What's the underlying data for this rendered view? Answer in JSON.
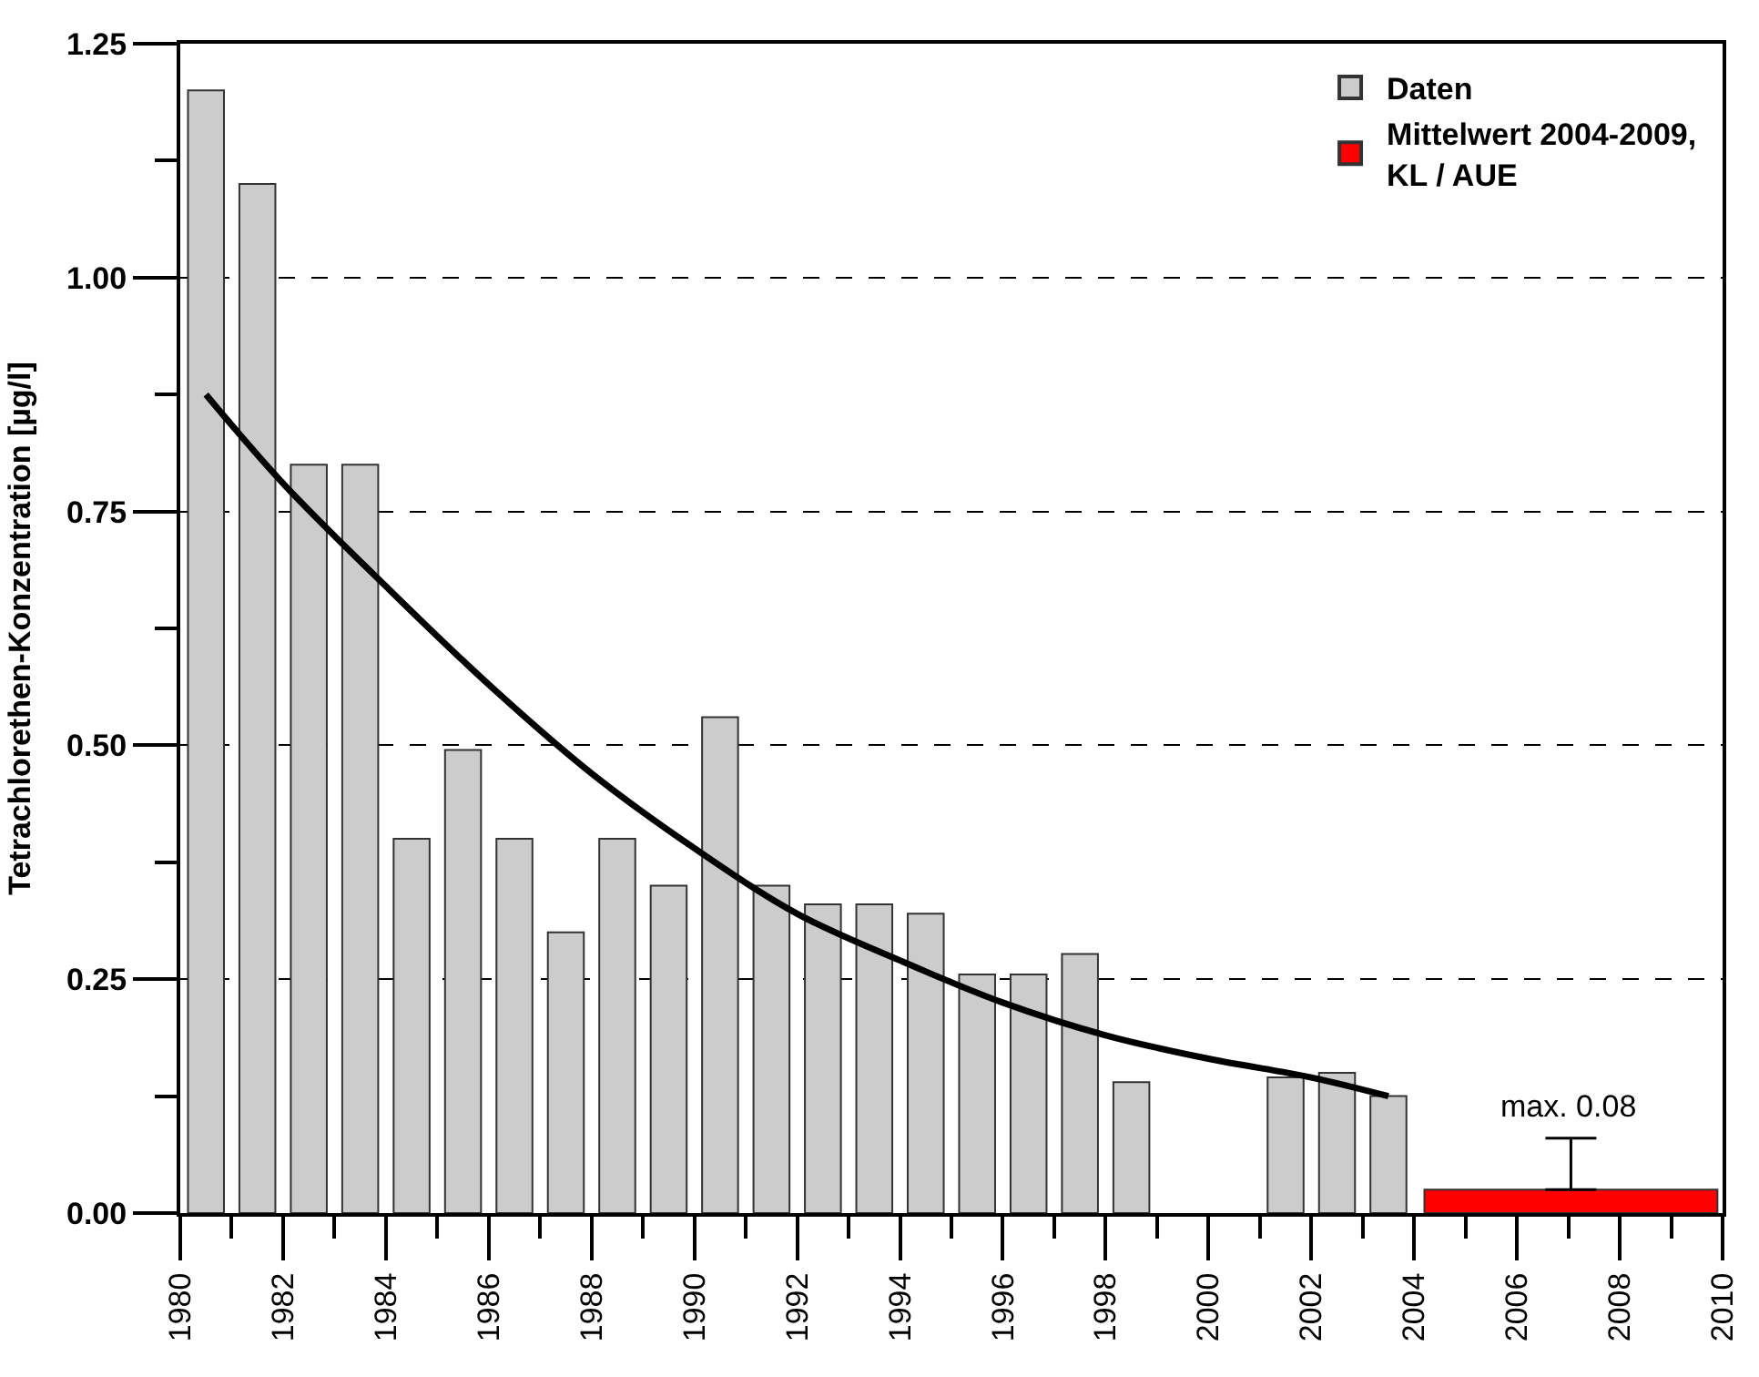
{
  "chart_data": {
    "type": "bar",
    "ylabel": "Tetrachlorethen-Konzentration [µg/l]",
    "series": [
      {
        "name": "Daten",
        "color": "#cccccc",
        "x": [
          1980.5,
          1981.5,
          1982.5,
          1983.5,
          1984.5,
          1985.5,
          1986.5,
          1987.5,
          1988.5,
          1989.5,
          1990.5,
          1991.5,
          1992.5,
          1993.5,
          1994.5,
          1995.5,
          1996.5,
          1997.5,
          1998.5,
          2001.5,
          2002.5,
          2003.5
        ],
        "values": [
          1.2,
          1.1,
          0.8,
          0.8,
          0.4,
          0.495,
          0.4,
          0.3,
          0.4,
          0.35,
          0.53,
          0.35,
          0.33,
          0.33,
          0.32,
          0.255,
          0.255,
          0.277,
          0.14,
          0.145,
          0.15,
          0.125
        ]
      },
      {
        "name": "Mittelwert 2004-2009, KL / AUE",
        "color": "#ff0000",
        "x": [
          2007.05
        ],
        "values": [
          0.025
        ],
        "errors": [
          [
            0.025,
            0.08
          ]
        ]
      },
      {
        "type": "line",
        "color": "#000000",
        "x": [
          1980.5,
          1982,
          1984,
          1986,
          1988,
          1990,
          1992,
          1994,
          1996,
          1998,
          2000,
          2002,
          2003.5
        ],
        "values": [
          0.875,
          0.78,
          0.67,
          0.565,
          0.47,
          0.39,
          0.32,
          0.27,
          0.225,
          0.19,
          0.165,
          0.145,
          0.125
        ]
      }
    ],
    "annotations": [
      {
        "text": "max. 0.08",
        "x": 2007,
        "y": 0.08
      }
    ],
    "xlim": [
      1980,
      2010
    ],
    "xticks": [
      1980,
      {
        "value": 1981,
        "label": null
      },
      1982,
      {
        "value": 1983,
        "label": null
      },
      1984,
      {
        "value": 1985,
        "label": null
      },
      1986,
      {
        "value": 1987,
        "label": null
      },
      1988,
      {
        "value": 1989,
        "label": null
      },
      1990,
      {
        "value": 1991,
        "label": null
      },
      1992,
      {
        "value": 1993,
        "label": null
      },
      1994,
      {
        "value": 1995,
        "label": null
      },
      1996,
      {
        "value": 1997,
        "label": null
      },
      1998,
      {
        "value": 1999,
        "label": null
      },
      2000,
      {
        "value": 2001,
        "label": null
      },
      2002,
      {
        "value": 2003,
        "label": null
      },
      2004,
      {
        "value": 2005,
        "label": null
      },
      2006,
      {
        "value": 2007,
        "label": null
      },
      2008,
      {
        "value": 2009,
        "label": null
      },
      2010
    ],
    "ylim": [
      0,
      1.25
    ],
    "yticks": [
      {
        "value": 0,
        "label": "0.00"
      },
      {
        "value": 0.125,
        "label": null
      },
      {
        "value": 0.25,
        "label": "0.25"
      },
      {
        "value": 0.375,
        "label": null
      },
      {
        "value": 0.5,
        "label": "0.50"
      },
      {
        "value": 0.625,
        "label": null
      },
      {
        "value": 0.75,
        "label": "0.75"
      },
      {
        "value": 0.875,
        "label": null
      },
      {
        "value": 1.0,
        "label": "1.00"
      },
      {
        "value": 1.125,
        "label": null
      },
      {
        "value": 1.25,
        "label": "1.25"
      }
    ],
    "grid": "y",
    "legend": "top right",
    "line_style": "solid",
    "marker": "none"
  }
}
